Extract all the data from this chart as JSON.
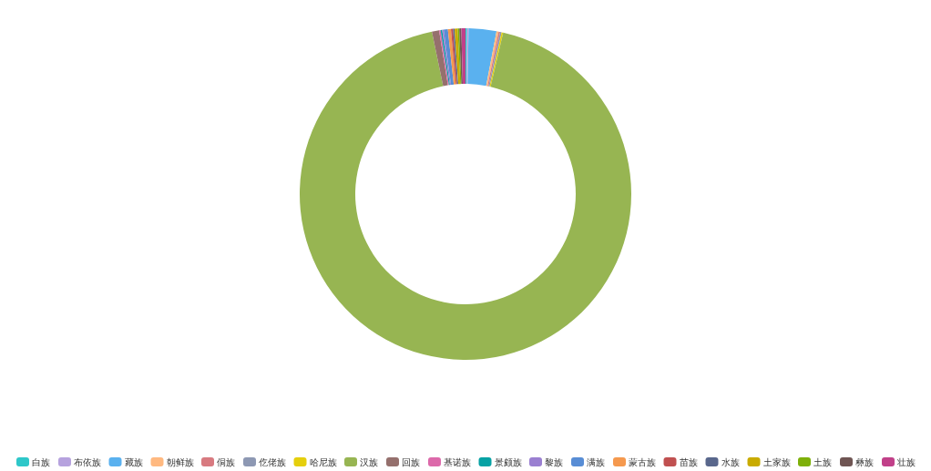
{
  "chart_data": {
    "type": "donut",
    "legend": "bottom",
    "categories": [
      "白族",
      "布依族",
      "藏族",
      "朝鲜族",
      "侗族",
      "仡佬族",
      "哈尼族",
      "汉族",
      "回族",
      "基诺族",
      "景颇族",
      "黎族",
      "满族",
      "蒙古族",
      "苗族",
      "水族",
      "土家族",
      "土族",
      "彝族",
      "壮族"
    ],
    "values": [
      0.15,
      0.15,
      2.7,
      0.2,
      0.15,
      0.15,
      0.15,
      93.1,
      0.7,
      0.15,
      0.15,
      0.15,
      0.4,
      0.3,
      0.2,
      0.15,
      0.3,
      0.15,
      0.2,
      0.4
    ],
    "colors": [
      "#2ec7c9",
      "#b6a2de",
      "#5ab1ef",
      "#ffb980",
      "#d87a80",
      "#8d98b3",
      "#e5cf0d",
      "#97b552",
      "#95706d",
      "#dc69aa",
      "#07a2a4",
      "#9a7fd1",
      "#588dd5",
      "#f5994e",
      "#c05050",
      "#59678c",
      "#c9ab00",
      "#7eb00a",
      "#6f5553",
      "#c14089"
    ]
  }
}
